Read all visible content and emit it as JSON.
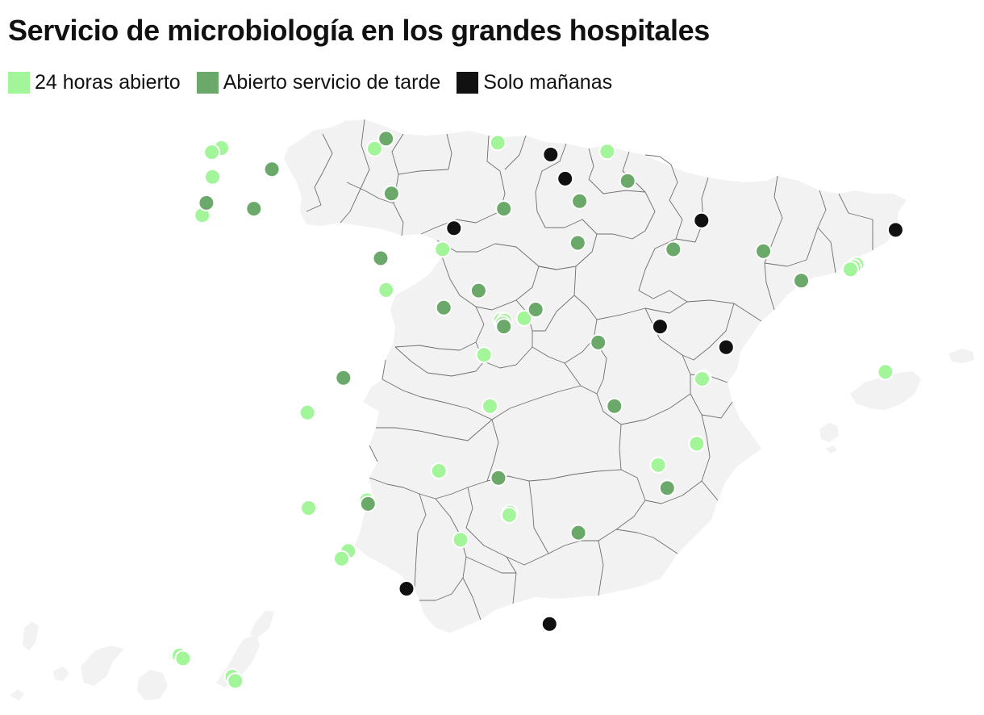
{
  "title": "Servicio de microbiología en los grandes hospitales",
  "legend": [
    {
      "key": "24h",
      "label": "24 horas abierto",
      "color": "#a3f59a"
    },
    {
      "key": "tarde",
      "label": "Abierto servicio de tarde",
      "color": "#6aa96a"
    },
    {
      "key": "manana",
      "label": "Solo mañanas",
      "color": "#111111"
    }
  ],
  "map": {
    "region": "España (península, Baleares, Canarias, Ceuta y Melilla)",
    "land_color": "#f2f2f2",
    "border_color": "#6e6e6e"
  },
  "hospitals": [
    {
      "type": "24h",
      "lon": -8.4,
      "lat": 43.37
    },
    {
      "type": "24h",
      "lon": -8.56,
      "lat": 43.3
    },
    {
      "type": "24h",
      "lon": -8.55,
      "lat": 42.88
    },
    {
      "type": "24h",
      "lon": -8.72,
      "lat": 42.23
    },
    {
      "type": "tarde",
      "lon": -8.65,
      "lat": 42.44
    },
    {
      "type": "tarde",
      "lon": -7.56,
      "lat": 43.01
    },
    {
      "type": "tarde",
      "lon": -7.86,
      "lat": 42.34
    },
    {
      "type": "24h",
      "lon": -5.85,
      "lat": 43.36
    },
    {
      "type": "tarde",
      "lon": -5.66,
      "lat": 43.53
    },
    {
      "type": "24h",
      "lon": -3.8,
      "lat": 43.46
    },
    {
      "type": "manana",
      "lon": -2.92,
      "lat": 43.26
    },
    {
      "type": "24h",
      "lon": -1.98,
      "lat": 43.31
    },
    {
      "type": "tarde",
      "lon": -5.57,
      "lat": 42.6
    },
    {
      "type": "manana",
      "lon": -4.53,
      "lat": 42.01
    },
    {
      "type": "tarde",
      "lon": -3.7,
      "lat": 42.34
    },
    {
      "type": "manana",
      "lon": -2.68,
      "lat": 42.85
    },
    {
      "type": "tarde",
      "lon": -2.44,
      "lat": 42.47
    },
    {
      "type": "tarde",
      "lon": -1.64,
      "lat": 42.81
    },
    {
      "type": "manana",
      "lon": -0.41,
      "lat": 42.14
    },
    {
      "type": "tarde",
      "lon": -0.88,
      "lat": 41.65
    },
    {
      "type": "tarde",
      "lon": -2.47,
      "lat": 41.76
    },
    {
      "type": "tarde",
      "lon": 0.62,
      "lat": 41.62
    },
    {
      "type": "manana",
      "lon": 2.82,
      "lat": 41.98
    },
    {
      "type": "24h",
      "lon": 2.17,
      "lat": 41.39
    },
    {
      "type": "24h",
      "lon": 2.12,
      "lat": 41.35
    },
    {
      "type": "24h",
      "lon": 2.07,
      "lat": 41.31
    },
    {
      "type": "tarde",
      "lon": 1.25,
      "lat": 41.12
    },
    {
      "type": "manana",
      "lon": 0.0,
      "lat": 39.99
    },
    {
      "type": "manana",
      "lon": -1.1,
      "lat": 40.34
    },
    {
      "type": "24h",
      "lon": -4.72,
      "lat": 41.65
    },
    {
      "type": "tarde",
      "lon": -5.75,
      "lat": 41.5
    },
    {
      "type": "24h",
      "lon": -5.66,
      "lat": 40.96
    },
    {
      "type": "tarde",
      "lon": -4.12,
      "lat": 40.95
    },
    {
      "type": "tarde",
      "lon": -4.7,
      "lat": 40.66
    },
    {
      "type": "24h",
      "lon": -3.75,
      "lat": 40.45
    },
    {
      "type": "24h",
      "lon": -3.69,
      "lat": 40.44
    },
    {
      "type": "24h",
      "lon": -3.72,
      "lat": 40.39
    },
    {
      "type": "tarde",
      "lon": -3.7,
      "lat": 40.34
    },
    {
      "type": "24h",
      "lon": -3.36,
      "lat": 40.48
    },
    {
      "type": "tarde",
      "lon": -3.17,
      "lat": 40.63
    },
    {
      "type": "24h",
      "lon": -4.03,
      "lat": 39.86
    },
    {
      "type": "tarde",
      "lon": -2.13,
      "lat": 40.07
    },
    {
      "type": "tarde",
      "lon": -6.37,
      "lat": 39.47
    },
    {
      "type": "24h",
      "lon": -6.97,
      "lat": 38.88
    },
    {
      "type": "24h",
      "lon": -3.93,
      "lat": 38.99
    },
    {
      "type": "tarde",
      "lon": -1.86,
      "lat": 38.99
    },
    {
      "type": "24h",
      "lon": -0.38,
      "lat": 39.47
    },
    {
      "type": "24h",
      "lon": -0.4,
      "lat": 39.45
    },
    {
      "type": "24h",
      "lon": -0.49,
      "lat": 38.35
    },
    {
      "type": "24h",
      "lon": -1.13,
      "lat": 37.99
    },
    {
      "type": "tarde",
      "lon": -0.98,
      "lat": 37.6
    },
    {
      "type": "24h",
      "lon": -4.78,
      "lat": 37.89
    },
    {
      "type": "tarde",
      "lon": -3.79,
      "lat": 37.77
    },
    {
      "type": "24h",
      "lon": -6.95,
      "lat": 37.26
    },
    {
      "type": "24h",
      "lon": -5.98,
      "lat": 37.39
    },
    {
      "type": "tarde",
      "lon": -5.96,
      "lat": 37.33
    },
    {
      "type": "24h",
      "lon": -3.6,
      "lat": 37.18
    },
    {
      "type": "24h",
      "lon": -3.61,
      "lat": 37.14
    },
    {
      "type": "tarde",
      "lon": -2.46,
      "lat": 36.84
    },
    {
      "type": "24h",
      "lon": -4.42,
      "lat": 36.72
    },
    {
      "type": "24h",
      "lon": -6.29,
      "lat": 36.53
    },
    {
      "type": "24h",
      "lon": -6.4,
      "lat": 36.4
    },
    {
      "type": "manana",
      "lon": -5.32,
      "lat": 35.89
    },
    {
      "type": "manana",
      "lon": -2.94,
      "lat": 35.29
    },
    {
      "type": "24h",
      "lon": 2.65,
      "lat": 39.57
    },
    {
      "type": "24h",
      "lon": -16.31,
      "lat": 28.48
    },
    {
      "type": "24h",
      "lon": -16.25,
      "lat": 28.43
    },
    {
      "type": "24h",
      "lon": -15.43,
      "lat": 28.12
    },
    {
      "type": "24h",
      "lon": -15.38,
      "lat": 28.05
    }
  ]
}
